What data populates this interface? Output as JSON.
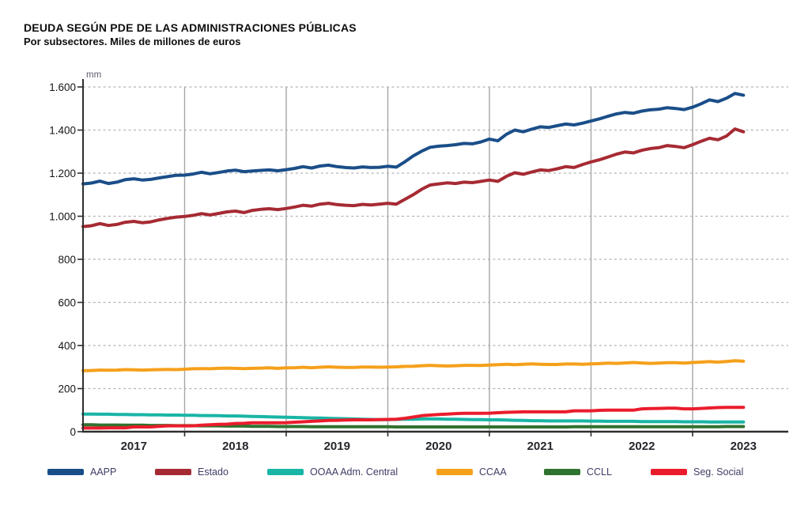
{
  "page": {
    "title": "DEUDA SEGÚN PDE DE LAS ADMINISTRACIONES PÚBLICAS",
    "subtitle": "Por subsectores. Miles de millones de euros"
  },
  "chart_data": {
    "type": "line",
    "title": "DEUDA SEGÚN PDE DE LAS ADMINISTRACIONES PÚBLICAS",
    "subtitle": "Por subsectores. Miles de millones de euros",
    "unit_label": "mm",
    "ylabel": "mm (miles de millones de euros)",
    "ylim": [
      0,
      1600
    ],
    "grid": "horizontal-dashed, vertical-solid-year-separators",
    "legend_position": "bottom",
    "x_years": [
      "2017",
      "2018",
      "2019",
      "2020",
      "2021",
      "2022",
      "2023"
    ],
    "x_frequency": "monthly",
    "x_start": "2017-01",
    "x_end": "2023-07",
    "y_ticks": {
      "values": [
        0,
        200,
        400,
        600,
        800,
        1000,
        1200,
        1400,
        1600
      ],
      "labels": [
        "0",
        "200",
        "400",
        "600",
        "800",
        "1.000",
        "1.200",
        "1.400",
        "1.600"
      ]
    },
    "colors": {
      "grid_dashed": "#b4b4b4",
      "grid_vertical": "#a6a6a6",
      "axis": "#2e2e2e"
    },
    "series": [
      {
        "name": "AAPP",
        "color": "#1A4E89",
        "values": [
          1150,
          1154,
          1163,
          1152,
          1158,
          1170,
          1174,
          1168,
          1171,
          1178,
          1184,
          1190,
          1191,
          1196,
          1204,
          1197,
          1203,
          1210,
          1214,
          1207,
          1210,
          1213,
          1215,
          1211,
          1216,
          1222,
          1230,
          1224,
          1233,
          1237,
          1230,
          1226,
          1224,
          1229,
          1226,
          1227,
          1232,
          1228,
          1252,
          1280,
          1302,
          1320,
          1325,
          1328,
          1332,
          1338,
          1336,
          1345,
          1358,
          1350,
          1380,
          1400,
          1392,
          1404,
          1415,
          1412,
          1420,
          1428,
          1424,
          1432,
          1442,
          1452,
          1464,
          1475,
          1482,
          1478,
          1488,
          1494,
          1497,
          1504,
          1500,
          1495,
          1506,
          1522,
          1540,
          1532,
          1548,
          1570,
          1562
        ]
      },
      {
        "name": "Estado",
        "color": "#A62A33",
        "values": [
          952,
          956,
          966,
          957,
          962,
          972,
          976,
          970,
          974,
          983,
          990,
          996,
          999,
          1004,
          1012,
          1006,
          1013,
          1020,
          1024,
          1017,
          1027,
          1032,
          1035,
          1031,
          1036,
          1043,
          1051,
          1047,
          1056,
          1060,
          1054,
          1051,
          1049,
          1055,
          1052,
          1056,
          1060,
          1056,
          1078,
          1100,
          1125,
          1145,
          1150,
          1155,
          1152,
          1158,
          1156,
          1162,
          1168,
          1162,
          1185,
          1202,
          1195,
          1205,
          1215,
          1212,
          1220,
          1230,
          1226,
          1240,
          1252,
          1262,
          1275,
          1288,
          1298,
          1294,
          1306,
          1314,
          1318,
          1328,
          1324,
          1318,
          1332,
          1348,
          1362,
          1355,
          1372,
          1405,
          1392
        ]
      },
      {
        "name": "OOAA Adm. Central",
        "color": "#19B5A5",
        "values": [
          82,
          82,
          81,
          81,
          80,
          80,
          79,
          79,
          78,
          78,
          77,
          77,
          76,
          76,
          75,
          75,
          74,
          73,
          73,
          72,
          71,
          70,
          69,
          68,
          67,
          66,
          65,
          64,
          63,
          62,
          61,
          60,
          59,
          58,
          57,
          56,
          56,
          57,
          58,
          58,
          59,
          59,
          59,
          58,
          58,
          57,
          56,
          56,
          55,
          55,
          54,
          53,
          52,
          51,
          51,
          50,
          50,
          50,
          50,
          50,
          49,
          49,
          48,
          48,
          48,
          48,
          47,
          47,
          47,
          47,
          47,
          46,
          46,
          46,
          45,
          45,
          45,
          45,
          45
        ]
      },
      {
        "name": "CCAA",
        "color": "#F5A01B",
        "values": [
          283,
          284,
          286,
          285,
          286,
          288,
          287,
          286,
          287,
          288,
          289,
          288,
          290,
          292,
          293,
          292,
          294,
          295,
          294,
          293,
          294,
          295,
          296,
          294,
          296,
          297,
          299,
          297,
          299,
          301,
          299,
          298,
          298,
          300,
          300,
          299,
          300,
          301,
          303,
          304,
          306,
          308,
          306,
          305,
          306,
          308,
          308,
          307,
          309,
          311,
          313,
          311,
          313,
          315,
          313,
          312,
          312,
          314,
          314,
          313,
          315,
          316,
          318,
          317,
          319,
          321,
          319,
          317,
          318,
          320,
          320,
          318,
          321,
          323,
          325,
          323,
          326,
          329,
          327
        ]
      },
      {
        "name": "CCLL",
        "color": "#30722F",
        "values": [
          32,
          32,
          31,
          31,
          31,
          30,
          30,
          30,
          29,
          29,
          29,
          28,
          28,
          28,
          27,
          27,
          27,
          26,
          26,
          26,
          25,
          25,
          25,
          24,
          24,
          24,
          24,
          23,
          23,
          23,
          23,
          23,
          23,
          23,
          23,
          23,
          23,
          22,
          22,
          22,
          22,
          22,
          22,
          22,
          22,
          22,
          22,
          22,
          22,
          22,
          22,
          22,
          22,
          22,
          22,
          22,
          22,
          22,
          23,
          23,
          23,
          23,
          23,
          23,
          23,
          23,
          23,
          23,
          23,
          23,
          23,
          23,
          23,
          23,
          23,
          23,
          24,
          24,
          24
        ]
      },
      {
        "name": "Seg. Social",
        "color": "#EA1C2C",
        "values": [
          17,
          17,
          17,
          18,
          18,
          18,
          22,
          22,
          22,
          25,
          27,
          27,
          27,
          27,
          30,
          32,
          34,
          35,
          38,
          39,
          41,
          41,
          41,
          41,
          42,
          44,
          46,
          48,
          50,
          52,
          53,
          54,
          55,
          55,
          55,
          56,
          57,
          58,
          62,
          68,
          74,
          77,
          80,
          82,
          84,
          85,
          85,
          85,
          86,
          88,
          90,
          91,
          92,
          92,
          92,
          92,
          92,
          92,
          97,
          97,
          97,
          99,
          100,
          100,
          100,
          100,
          106,
          107,
          108,
          109,
          109,
          106,
          106,
          108,
          110,
          112,
          113,
          113,
          113
        ]
      }
    ]
  }
}
